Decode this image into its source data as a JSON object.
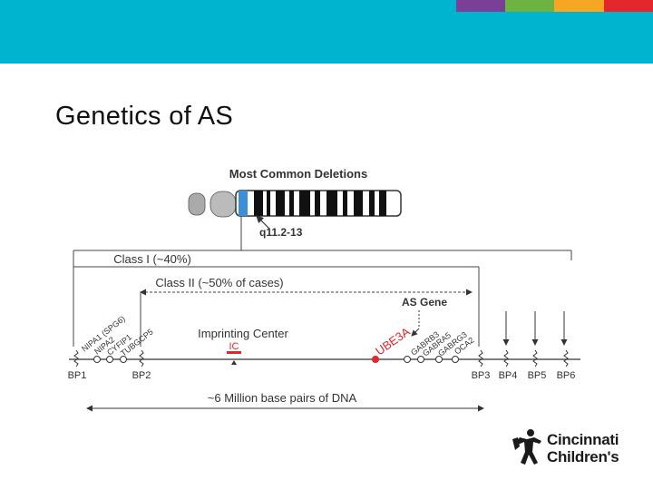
{
  "slide": {
    "title": "Genetics of AS",
    "header_color": "#00b3cf",
    "color_strips": [
      {
        "color": "#7b3f98"
      },
      {
        "color": "#6cb33f"
      },
      {
        "color": "#f6a623"
      },
      {
        "color": "#e2262b"
      }
    ]
  },
  "diagram": {
    "title": "Most Common Deletions",
    "band_label": "q11.2-13",
    "class1_label": "Class I (~40%)",
    "class2_label": "Class II (~50% of cases)",
    "as_gene_label": "AS Gene",
    "imprinting_label": "Imprinting Center",
    "ic_label": "IC",
    "ube3a_label": "UBE3A",
    "left_genes": [
      "NIPA1 (SPG6)",
      "NIPA2",
      "CYFIP1",
      "TUBGCP5"
    ],
    "right_genes": [
      "GABRB3",
      "GABRA5",
      "GABRG3",
      "OCA2"
    ],
    "breakpoints": [
      "BP1",
      "BP2",
      "BP3",
      "BP4",
      "BP5",
      "BP6"
    ],
    "dna_label": "~6 Million base pairs of DNA",
    "accent_red": "#e2262b"
  },
  "logo": {
    "line1": "Cincinnati",
    "line2": "Children's"
  }
}
